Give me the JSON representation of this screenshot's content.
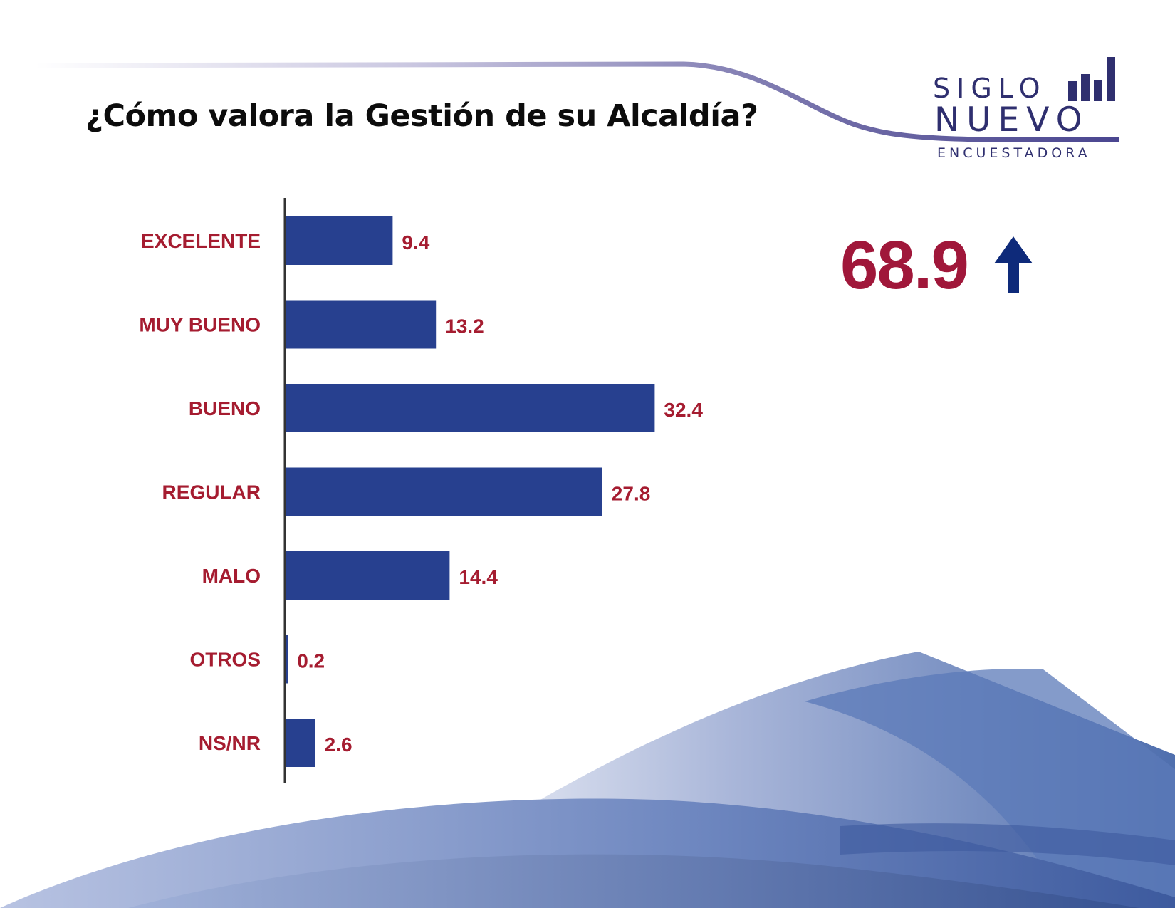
{
  "header": {
    "title": "¿Cómo valora la Gestión de su Alcaldía?"
  },
  "logo": {
    "line1": "SIGLO",
    "line2": "NUEVO",
    "line3": "ENCUESTADORA",
    "icon": "bar-chart-logo-icon"
  },
  "highlight": {
    "value": "68.9",
    "trend_icon": "arrow-up-icon",
    "trend": "up"
  },
  "colors": {
    "bar": "#27408f",
    "label": "#a51c30",
    "big_number": "#a0173a",
    "arrow": "#0e2a7a",
    "logo": "#2f2f6f"
  },
  "chart_data": {
    "type": "bar",
    "orientation": "horizontal",
    "title": "¿Cómo valora la Gestión de su Alcaldía?",
    "categories": [
      "EXCELENTE",
      "MUY BUENO",
      "BUENO",
      "REGULAR",
      "MALO",
      "OTROS",
      "NS/NR"
    ],
    "values": [
      9.4,
      13.2,
      32.4,
      27.8,
      14.4,
      0.2,
      2.6
    ],
    "value_labels": [
      "9.4",
      "13.2",
      "32.4",
      "27.8",
      "14.4",
      "0.2",
      "2.6"
    ],
    "xlim": [
      0,
      40
    ],
    "grid": false,
    "legend": "none"
  }
}
